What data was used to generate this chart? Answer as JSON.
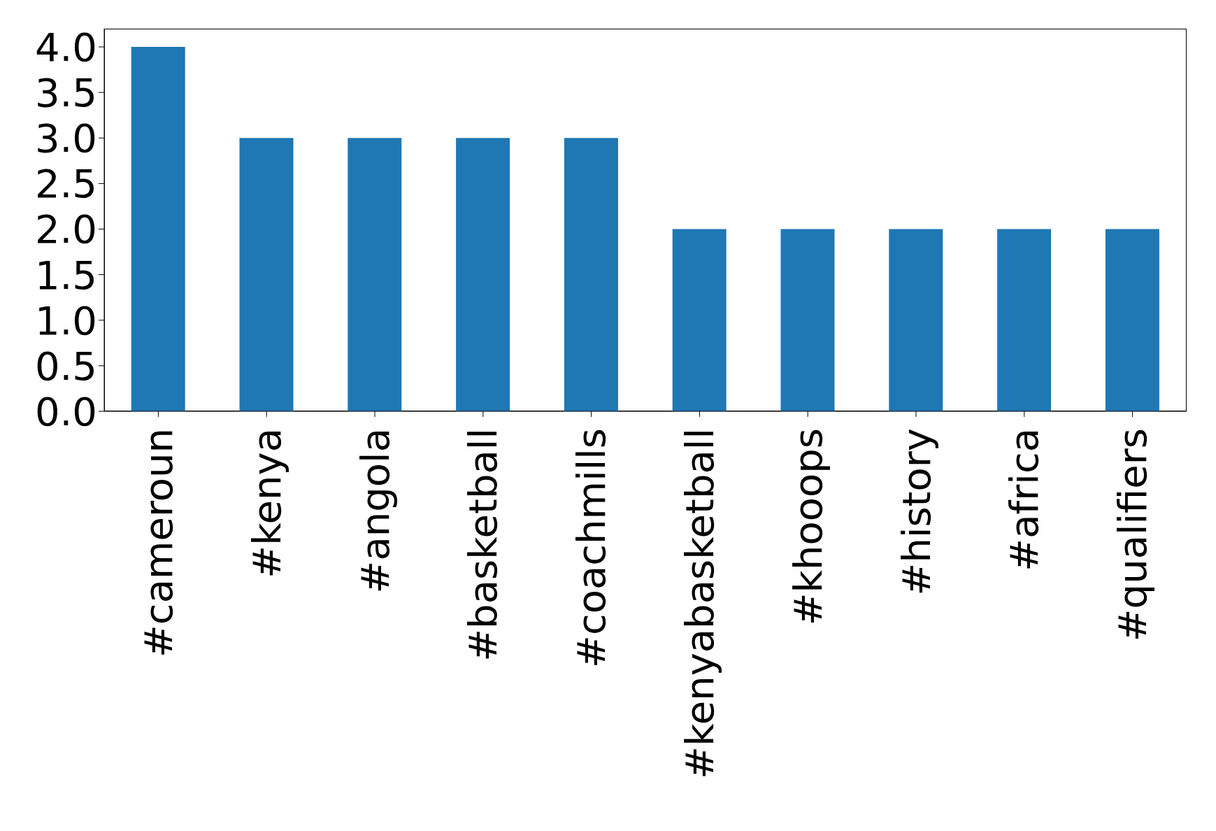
{
  "chart_data": {
    "type": "bar",
    "categories": [
      "#cameroun",
      "#kenya",
      "#angola",
      "#basketball",
      "#coachmills",
      "#kenyabasketball",
      "#khooops",
      "#history",
      "#africa",
      "#qualifiers"
    ],
    "values": [
      4,
      3,
      3,
      3,
      3,
      2,
      2,
      2,
      2,
      2
    ],
    "color": "#1f77b4",
    "ylim": [
      0,
      4.2
    ],
    "yticks": [
      {
        "value": 0,
        "label": "0.0"
      },
      0.5,
      {
        "value": 1,
        "label": "1.0"
      },
      1.5,
      {
        "value": 2,
        "label": "2.0"
      },
      2.5,
      {
        "value": 3,
        "label": "3.0"
      },
      3.5,
      {
        "value": 4,
        "label": "4.0"
      }
    ],
    "grid": false,
    "legend": false
  }
}
